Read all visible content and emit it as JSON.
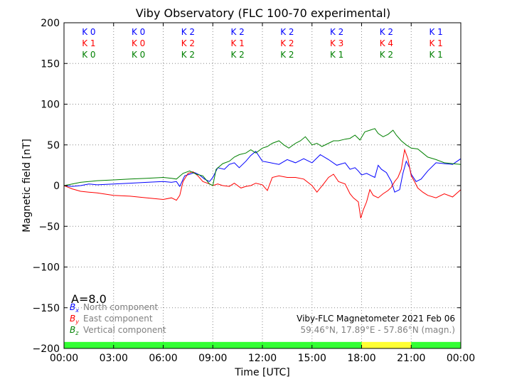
{
  "chart_data": {
    "type": "line",
    "title": "Viby Observatory (FLC 100-70 experimental)",
    "xlabel": "Time [UTC]",
    "ylabel": "Magnetic field [nT]",
    "xlim": [
      0,
      24
    ],
    "ylim": [
      -200,
      200
    ],
    "x_tick_labels": [
      "00:00",
      "03:00",
      "06:00",
      "09:00",
      "12:00",
      "15:00",
      "18:00",
      "21:00",
      "00:00"
    ],
    "y_ticks": [
      200,
      150,
      100,
      50,
      0,
      -50,
      -100,
      -150,
      -200
    ],
    "y_tick_labels": [
      "200",
      "150",
      "100",
      "50",
      "0",
      "−50",
      "−100",
      "−150",
      "−200"
    ],
    "grid": true,
    "k_index": {
      "rows": [
        {
          "color": "#0000ff",
          "labels": [
            "K 0",
            "K 0",
            "K 2",
            "K 2",
            "K 2",
            "K 2",
            "K 2",
            "K 1"
          ]
        },
        {
          "color": "#ff0000",
          "labels": [
            "K 1",
            "K 0",
            "K 2",
            "K 1",
            "K 2",
            "K 3",
            "K 4",
            "K 1"
          ]
        },
        {
          "color": "#008000",
          "labels": [
            "K 0",
            "K 0",
            "K 2",
            "K 2",
            "K 2",
            "K 1",
            "K 2",
            "K 1"
          ]
        }
      ]
    },
    "activity_bar": [
      {
        "start": 0,
        "end": 18,
        "color": "#33ff33"
      },
      {
        "start": 18,
        "end": 21,
        "color": "#ffff33"
      },
      {
        "start": 21,
        "end": 24,
        "color": "#33ff33"
      }
    ],
    "a_index": "A=8.0",
    "legend": {
      "placement": "bottom-left",
      "items": [
        {
          "symbol": "B",
          "sub": "x",
          "label": "North component",
          "color": "#0000ff"
        },
        {
          "symbol": "B",
          "sub": "y",
          "label": "East component",
          "color": "#ff0000"
        },
        {
          "symbol": "B",
          "sub": "z",
          "label": "Vertical component",
          "color": "#008000"
        }
      ]
    },
    "info_text": "Viby-FLC Magnetometer 2021 Feb 06",
    "coords_text": "59.46°N, 17.89°E - 57.86°N (magn.)",
    "series": [
      {
        "name": "Bx",
        "color": "#0000ff",
        "points": [
          [
            0,
            0
          ],
          [
            0.5,
            -1
          ],
          [
            1,
            0
          ],
          [
            1.5,
            2
          ],
          [
            2,
            1
          ],
          [
            3,
            2
          ],
          [
            4,
            3
          ],
          [
            5,
            4
          ],
          [
            6,
            5
          ],
          [
            6.5,
            4
          ],
          [
            6.8,
            5
          ],
          [
            7.0,
            -1
          ],
          [
            7.3,
            12
          ],
          [
            7.6,
            14
          ],
          [
            7.9,
            16
          ],
          [
            8.2,
            13
          ],
          [
            8.5,
            8
          ],
          [
            8.8,
            5
          ],
          [
            9.0,
            10
          ],
          [
            9.3,
            22
          ],
          [
            9.7,
            20
          ],
          [
            10.0,
            26
          ],
          [
            10.3,
            28
          ],
          [
            10.6,
            22
          ],
          [
            11.0,
            30
          ],
          [
            11.3,
            37
          ],
          [
            11.6,
            42
          ],
          [
            12.0,
            30
          ],
          [
            12.5,
            28
          ],
          [
            13.0,
            26
          ],
          [
            13.5,
            32
          ],
          [
            14.0,
            28
          ],
          [
            14.5,
            33
          ],
          [
            15.0,
            28
          ],
          [
            15.5,
            38
          ],
          [
            16.0,
            32
          ],
          [
            16.5,
            25
          ],
          [
            17.0,
            28
          ],
          [
            17.3,
            20
          ],
          [
            17.6,
            22
          ],
          [
            17.8,
            18
          ],
          [
            18.0,
            13
          ],
          [
            18.3,
            15
          ],
          [
            18.6,
            12
          ],
          [
            18.8,
            10
          ],
          [
            19.0,
            25
          ],
          [
            19.2,
            20
          ],
          [
            19.5,
            16
          ],
          [
            19.8,
            5
          ],
          [
            20.0,
            -8
          ],
          [
            20.3,
            -5
          ],
          [
            20.5,
            15
          ],
          [
            20.7,
            30
          ],
          [
            20.9,
            22
          ],
          [
            21.0,
            14
          ],
          [
            21.3,
            5
          ],
          [
            21.6,
            8
          ],
          [
            22.0,
            18
          ],
          [
            22.5,
            28
          ],
          [
            23.0,
            27
          ],
          [
            23.5,
            26
          ],
          [
            24,
            33
          ]
        ]
      },
      {
        "name": "By",
        "color": "#ff0000",
        "points": [
          [
            0,
            0
          ],
          [
            0.5,
            -4
          ],
          [
            1,
            -7
          ],
          [
            1.5,
            -8
          ],
          [
            2,
            -9
          ],
          [
            3,
            -12
          ],
          [
            4,
            -13
          ],
          [
            5,
            -15
          ],
          [
            6,
            -17
          ],
          [
            6.5,
            -15
          ],
          [
            6.8,
            -18
          ],
          [
            7.0,
            -12
          ],
          [
            7.2,
            5
          ],
          [
            7.5,
            15
          ],
          [
            7.8,
            17
          ],
          [
            8.1,
            12
          ],
          [
            8.4,
            5
          ],
          [
            8.8,
            2
          ],
          [
            9.0,
            0
          ],
          [
            9.3,
            2
          ],
          [
            9.6,
            0
          ],
          [
            10.0,
            -1
          ],
          [
            10.3,
            3
          ],
          [
            10.7,
            -3
          ],
          [
            11.0,
            -1
          ],
          [
            11.3,
            0
          ],
          [
            11.6,
            3
          ],
          [
            12.0,
            1
          ],
          [
            12.3,
            -6
          ],
          [
            12.6,
            10
          ],
          [
            13.0,
            12
          ],
          [
            13.5,
            10
          ],
          [
            14.0,
            10
          ],
          [
            14.5,
            8
          ],
          [
            15.0,
            0
          ],
          [
            15.3,
            -8
          ],
          [
            15.7,
            2
          ],
          [
            16.0,
            10
          ],
          [
            16.3,
            14
          ],
          [
            16.6,
            5
          ],
          [
            17.0,
            2
          ],
          [
            17.3,
            -10
          ],
          [
            17.5,
            -15
          ],
          [
            17.8,
            -20
          ],
          [
            17.95,
            -40
          ],
          [
            18.1,
            -30
          ],
          [
            18.3,
            -20
          ],
          [
            18.5,
            -5
          ],
          [
            18.7,
            -12
          ],
          [
            19.0,
            -15
          ],
          [
            19.3,
            -10
          ],
          [
            19.6,
            -6
          ],
          [
            19.8,
            -2
          ],
          [
            20.0,
            5
          ],
          [
            20.2,
            10
          ],
          [
            20.4,
            20
          ],
          [
            20.6,
            44
          ],
          [
            20.8,
            33
          ],
          [
            21.0,
            12
          ],
          [
            21.2,
            5
          ],
          [
            21.4,
            -3
          ],
          [
            21.7,
            -8
          ],
          [
            22.0,
            -12
          ],
          [
            22.5,
            -15
          ],
          [
            23.0,
            -10
          ],
          [
            23.5,
            -14
          ],
          [
            24,
            -5
          ]
        ]
      },
      {
        "name": "Bz",
        "color": "#008000",
        "points": [
          [
            0,
            0
          ],
          [
            0.5,
            2
          ],
          [
            1,
            4
          ],
          [
            1.5,
            5
          ],
          [
            2,
            6
          ],
          [
            3,
            7
          ],
          [
            4,
            8
          ],
          [
            5,
            9
          ],
          [
            6,
            10
          ],
          [
            6.5,
            9
          ],
          [
            6.8,
            8
          ],
          [
            7.2,
            15
          ],
          [
            7.6,
            18
          ],
          [
            8.0,
            14
          ],
          [
            8.4,
            12
          ],
          [
            8.8,
            2
          ],
          [
            9.0,
            0
          ],
          [
            9.2,
            20
          ],
          [
            9.6,
            27
          ],
          [
            10.0,
            30
          ],
          [
            10.3,
            35
          ],
          [
            10.6,
            38
          ],
          [
            11.0,
            40
          ],
          [
            11.3,
            44
          ],
          [
            11.6,
            40
          ],
          [
            12.0,
            46
          ],
          [
            12.3,
            48
          ],
          [
            12.6,
            52
          ],
          [
            13.0,
            55
          ],
          [
            13.3,
            50
          ],
          [
            13.6,
            46
          ],
          [
            14.0,
            52
          ],
          [
            14.3,
            55
          ],
          [
            14.6,
            60
          ],
          [
            15.0,
            50
          ],
          [
            15.3,
            52
          ],
          [
            15.6,
            48
          ],
          [
            16.0,
            52
          ],
          [
            16.3,
            55
          ],
          [
            16.6,
            55
          ],
          [
            17.0,
            57
          ],
          [
            17.3,
            58
          ],
          [
            17.6,
            62
          ],
          [
            17.9,
            56
          ],
          [
            18.2,
            66
          ],
          [
            18.5,
            68
          ],
          [
            18.8,
            70
          ],
          [
            19.0,
            64
          ],
          [
            19.3,
            60
          ],
          [
            19.6,
            63
          ],
          [
            19.9,
            68
          ],
          [
            20.1,
            62
          ],
          [
            20.4,
            55
          ],
          [
            20.7,
            50
          ],
          [
            21.0,
            46
          ],
          [
            21.4,
            45
          ],
          [
            21.7,
            40
          ],
          [
            22.0,
            35
          ],
          [
            22.5,
            32
          ],
          [
            23.0,
            28
          ],
          [
            23.5,
            27
          ],
          [
            24,
            26
          ]
        ]
      }
    ]
  }
}
